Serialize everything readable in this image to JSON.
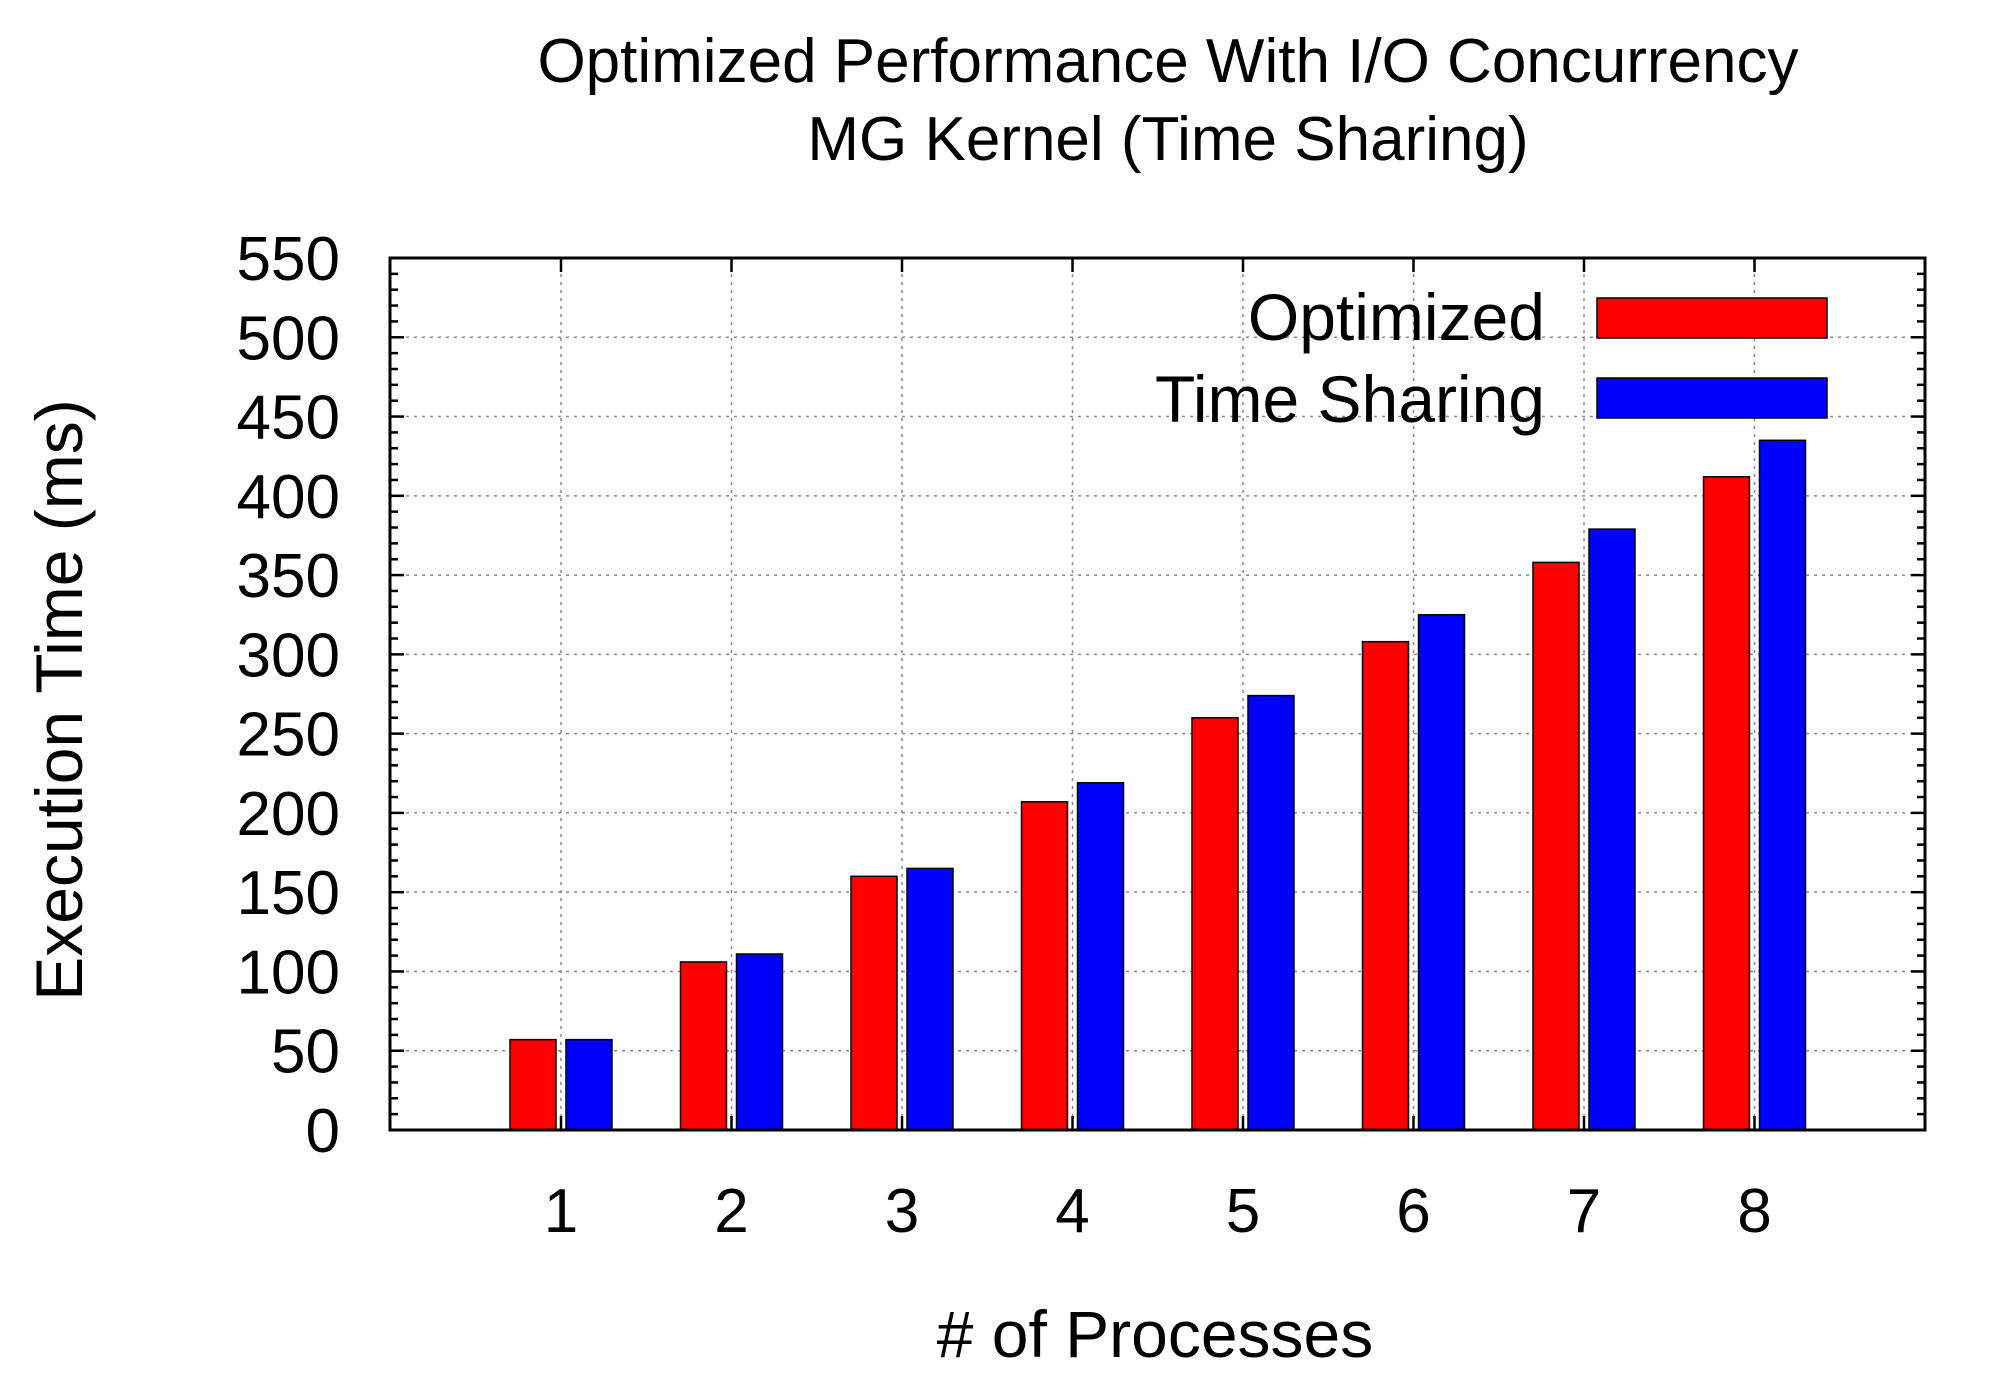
{
  "chart_data": {
    "type": "bar",
    "title_lines": [
      "Optimized Performance With I/O Concurrency",
      "MG Kernel (Time Sharing)"
    ],
    "xlabel": "# of Processes",
    "ylabel": "Execution Time (ms)",
    "categories": [
      "1",
      "2",
      "3",
      "4",
      "5",
      "6",
      "7",
      "8"
    ],
    "ylim": [
      0,
      550
    ],
    "y_ticks": [
      0,
      50,
      100,
      150,
      200,
      250,
      300,
      350,
      400,
      450,
      500,
      550
    ],
    "y_tick_labels": [
      "0",
      "50",
      "100",
      "150",
      "200",
      "250",
      "300",
      "350",
      "400",
      "450",
      "500",
      "550"
    ],
    "grid": true,
    "legend_position": "top-right",
    "series": [
      {
        "name": "Optimized",
        "color": "#ff0000",
        "values": [
          57,
          106,
          160,
          207,
          260,
          308,
          358,
          412
        ]
      },
      {
        "name": "Time Sharing",
        "color": "#0000ff",
        "values": [
          57,
          111,
          165,
          219,
          274,
          325,
          379,
          435
        ]
      }
    ]
  }
}
